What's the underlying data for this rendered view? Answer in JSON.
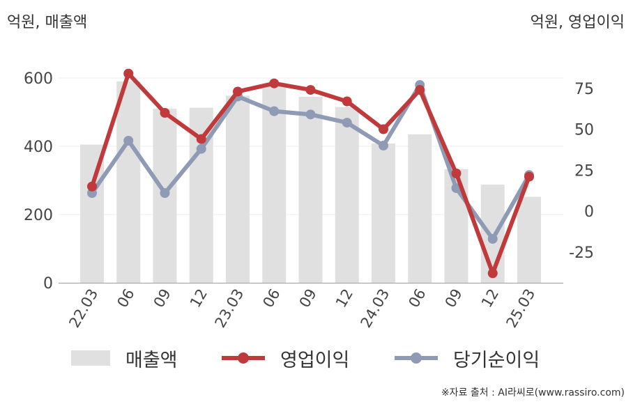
{
  "chart_data": {
    "type": "bar+line",
    "categories": [
      "22.03",
      "06",
      "09",
      "12",
      "23.03",
      "06",
      "09",
      "12",
      "24.03",
      "06",
      "09",
      "12",
      "25.03"
    ],
    "y_left": {
      "label": "억원, 매출액",
      "ylim": [
        0,
        600
      ],
      "ticks": [
        0,
        200,
        400,
        600
      ]
    },
    "y_right": {
      "label": "억원, 영업이익",
      "ylim": [
        -43,
        87
      ],
      "ticks": [
        -25,
        0,
        25,
        50,
        75
      ]
    },
    "series": [
      {
        "name": "매출액",
        "type": "bar",
        "axis": "left",
        "color": "#e0e0e0",
        "values": [
          405,
          590,
          510,
          513,
          548,
          576,
          545,
          515,
          408,
          435,
          333,
          288,
          252
        ]
      },
      {
        "name": "영업이익",
        "type": "line",
        "axis": "right",
        "color": "#c0393b",
        "values": [
          15,
          84,
          60,
          44,
          73,
          78,
          74,
          67,
          50,
          74,
          23,
          -38,
          21
        ]
      },
      {
        "name": "당기순이익",
        "type": "line",
        "axis": "right",
        "color": "#8f9bb5",
        "values": [
          11,
          43,
          11,
          38,
          70,
          61,
          59,
          54,
          40,
          77,
          14,
          -17,
          22
        ]
      }
    ],
    "grid": true,
    "legend": "bottom"
  },
  "source": "※자료 출처 : AI라씨로(www.rassiro.com)"
}
